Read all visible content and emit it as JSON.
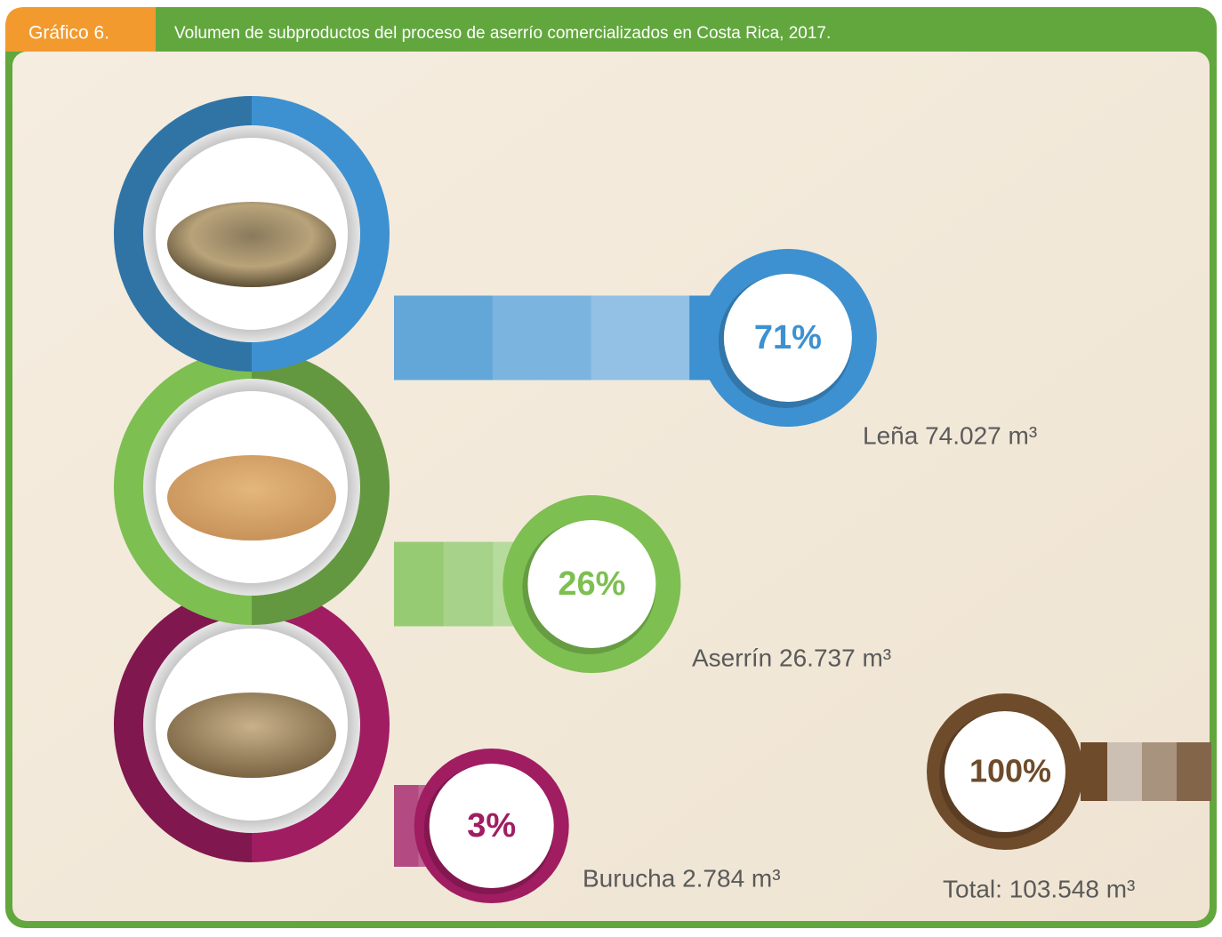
{
  "chart_data": {
    "type": "bar",
    "tab": "Gráfico 6.",
    "title": "Volumen de subproductos del proceso de aserrío comercializados en Costa Rica, 2017.",
    "categories": [
      "Leña 74.027 m³",
      "Aserrín 26.737 m³",
      "Burucha 2.784 m³"
    ],
    "values": [
      71,
      26,
      3
    ],
    "value_labels": [
      "71%",
      "26%",
      "3%"
    ],
    "colors": [
      "#3d91d0",
      "#7dbf51",
      "#a01d62"
    ],
    "total": {
      "value": 100,
      "value_label": "100%",
      "label": "Total: 103.548 m³",
      "color": "#6e4b2a"
    }
  }
}
